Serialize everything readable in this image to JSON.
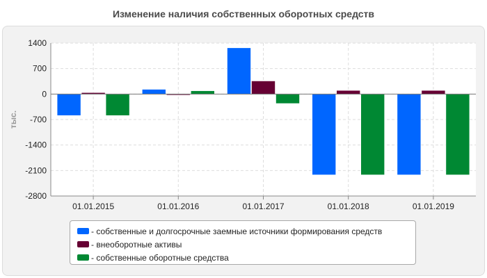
{
  "chart_data": {
    "type": "bar",
    "title": "Изменение наличия собственных оборотных средств",
    "ylabel": "тыс.",
    "xlabel": "",
    "ylim": [
      -2800,
      1400
    ],
    "yticks": [
      1400,
      700,
      0,
      -700,
      -1400,
      -2100,
      -2800
    ],
    "categories": [
      "01.01.2015",
      "01.01.2016",
      "01.01.2017",
      "01.01.2018",
      "01.01.2019"
    ],
    "series": [
      {
        "name": "собственные и долгосрочные заемные источники формирования средств",
        "color": "#0066ff",
        "values": [
          -590,
          130,
          1270,
          -2220,
          -2220
        ]
      },
      {
        "name": "внеоборотные активы",
        "color": "#660033",
        "values": [
          40,
          -30,
          360,
          100,
          100
        ]
      },
      {
        "name": "собственные оборотные средства",
        "color": "#008833",
        "values": [
          -590,
          90,
          -260,
          -2220,
          -2220
        ]
      }
    ],
    "grid": true,
    "legend_position": "bottom"
  }
}
